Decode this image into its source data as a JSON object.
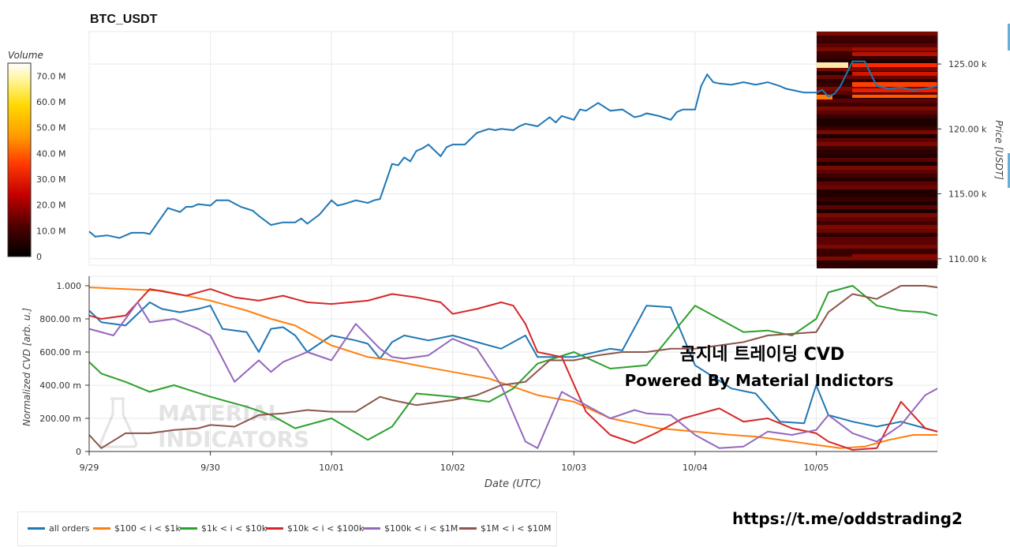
{
  "title": "BTC_USDT",
  "colorbar": {
    "label": "Volume",
    "ticks": [
      "70.0 M",
      "60.0 M",
      "50.0 M",
      "40.0 M",
      "30.0 M",
      "20.0 M",
      "10.0 M",
      "0"
    ],
    "max": 75
  },
  "price_axis": {
    "label": "Price [USDT]",
    "ticks": [
      "125.00 k",
      "120.00 k",
      "115.00 k",
      "110.00 k"
    ]
  },
  "cvd_axis": {
    "label": "Normalized CVD [arb. u.]",
    "ticks": [
      "1.000",
      "800.00 m",
      "600.00 m",
      "400.00 m",
      "200.00 m",
      "0"
    ]
  },
  "x_axis": {
    "label": "Date (UTC)",
    "ticks": [
      "9/29",
      "9/30",
      "10/01",
      "10/02",
      "10/03",
      "10/04",
      "10/05"
    ]
  },
  "watermark": {
    "line1": "MATERIAL",
    "line2": "INDICATORS"
  },
  "overlay": {
    "line1": "곰지네 트레이딩 CVD",
    "line2": "Powered By Material Indictors"
  },
  "link_text": "https://t.me/oddstrading2",
  "colors": {
    "all_orders": "#1f77b4",
    "s100": "#ff7f0e",
    "s1k": "#2ca02c",
    "s10k": "#d62728",
    "s100k": "#9467bd",
    "s1m": "#8c564b"
  },
  "legend": [
    {
      "key": "all_orders",
      "label": "all orders"
    },
    {
      "key": "s100",
      "label": "$100 < i < $1k"
    },
    {
      "key": "s1k",
      "label": "$1k < i < $10k"
    },
    {
      "key": "s10k",
      "label": "$10k < i < $100k"
    },
    {
      "key": "s100k",
      "label": "$100k < i < $1M"
    },
    {
      "key": "s1m",
      "label": "$1M < i < $10M"
    }
  ],
  "chart_data": [
    {
      "type": "line",
      "title": "BTC_USDT",
      "xlabel": "",
      "ylabel": "Price [USDT]",
      "x_unit": "days since 9/29 00:00 UTC",
      "xlim": [
        0,
        7.0
      ],
      "ylim": [
        109.5,
        127.5
      ],
      "y_unit": "k USDT",
      "series": [
        {
          "name": "price",
          "x": [
            0,
            0.05,
            0.15,
            0.25,
            0.35,
            0.45,
            0.5,
            0.65,
            0.75,
            0.8,
            0.85,
            0.9,
            1.0,
            1.05,
            1.15,
            1.25,
            1.35,
            1.4,
            1.5,
            1.6,
            1.7,
            1.75,
            1.8,
            1.9,
            2.0,
            2.05,
            2.1,
            2.2,
            2.3,
            2.35,
            2.4,
            2.5,
            2.55,
            2.6,
            2.65,
            2.7,
            2.75,
            2.8,
            2.9,
            2.95,
            3.0,
            3.1,
            3.2,
            3.3,
            3.35,
            3.4,
            3.5,
            3.55,
            3.6,
            3.7,
            3.8,
            3.85,
            3.9,
            4.0,
            4.05,
            4.1,
            4.2,
            4.3,
            4.4,
            4.5,
            4.55,
            4.6,
            4.7,
            4.8,
            4.85,
            4.9,
            5.0,
            5.05,
            5.1,
            5.15,
            5.2,
            5.3,
            5.4,
            5.5,
            5.6,
            5.7,
            5.75,
            5.8,
            5.9,
            6.0,
            6.05,
            6.1,
            6.15,
            6.2,
            6.3,
            6.4,
            6.5,
            6.6,
            6.7,
            6.8,
            6.9,
            7.0
          ],
          "y": [
            112.1,
            111.7,
            111.8,
            111.6,
            112.0,
            112.0,
            111.9,
            113.9,
            113.6,
            114.0,
            114.0,
            114.2,
            114.1,
            114.5,
            114.5,
            114.0,
            113.7,
            113.3,
            112.6,
            112.8,
            112.8,
            113.1,
            112.7,
            113.4,
            114.5,
            114.1,
            114.2,
            114.5,
            114.3,
            114.5,
            114.6,
            117.3,
            117.2,
            117.8,
            117.5,
            118.3,
            118.5,
            118.8,
            117.9,
            118.6,
            118.8,
            118.8,
            119.7,
            120.0,
            119.9,
            120.0,
            119.9,
            120.2,
            120.4,
            120.2,
            120.9,
            120.5,
            121.0,
            120.7,
            121.5,
            121.4,
            122.0,
            121.4,
            121.5,
            120.9,
            121.0,
            121.2,
            121.0,
            120.7,
            121.3,
            121.5,
            121.5,
            123.3,
            124.2,
            123.6,
            123.5,
            123.4,
            123.6,
            123.4,
            123.6,
            123.3,
            123.1,
            123.0,
            122.8,
            122.8,
            123.0,
            122.5,
            122.7,
            123.3,
            125.2,
            125.2,
            123.3,
            123.1,
            123.2,
            123.0,
            123.1,
            123.3
          ]
        }
      ]
    },
    {
      "type": "line",
      "title": "",
      "xlabel": "Date (UTC)",
      "ylabel": "Normalized CVD [arb. u.]",
      "x_unit": "days since 9/29 00:00 UTC",
      "xlim": [
        0,
        7.0
      ],
      "ylim": [
        0,
        1.0
      ],
      "series": [
        {
          "name": "all orders",
          "key": "all_orders",
          "x": [
            0,
            0.1,
            0.3,
            0.5,
            0.6,
            0.75,
            0.9,
            1.0,
            1.1,
            1.3,
            1.4,
            1.5,
            1.6,
            1.7,
            1.8,
            2.0,
            2.2,
            2.3,
            2.4,
            2.5,
            2.6,
            2.8,
            3.0,
            3.2,
            3.4,
            3.6,
            3.7,
            4.0,
            4.3,
            4.4,
            4.6,
            4.8,
            5.0,
            5.3,
            5.5,
            5.7,
            5.9,
            6.0,
            6.1,
            6.3,
            6.5,
            6.7,
            6.9,
            7.0
          ],
          "y": [
            0.85,
            0.78,
            0.76,
            0.9,
            0.86,
            0.84,
            0.86,
            0.88,
            0.74,
            0.72,
            0.6,
            0.74,
            0.75,
            0.7,
            0.6,
            0.7,
            0.67,
            0.65,
            0.56,
            0.66,
            0.7,
            0.67,
            0.7,
            0.66,
            0.62,
            0.7,
            0.57,
            0.57,
            0.62,
            0.61,
            0.88,
            0.87,
            0.52,
            0.38,
            0.35,
            0.18,
            0.17,
            0.4,
            0.22,
            0.18,
            0.15,
            0.18,
            0.14,
            0.12
          ]
        },
        {
          "name": "$100 < i < $1k",
          "key": "s100",
          "x": [
            0,
            0.3,
            0.6,
            1.0,
            1.3,
            1.5,
            1.7,
            2.0,
            2.3,
            2.5,
            2.7,
            3.0,
            3.3,
            3.5,
            3.7,
            4.0,
            4.3,
            4.5,
            4.7,
            5.0,
            5.3,
            5.5,
            5.7,
            6.0,
            6.2,
            6.4,
            6.6,
            6.8,
            7.0
          ],
          "y": [
            0.99,
            0.98,
            0.97,
            0.91,
            0.85,
            0.8,
            0.76,
            0.64,
            0.57,
            0.55,
            0.52,
            0.48,
            0.44,
            0.39,
            0.34,
            0.3,
            0.2,
            0.17,
            0.14,
            0.12,
            0.1,
            0.09,
            0.07,
            0.04,
            0.02,
            0.03,
            0.07,
            0.1,
            0.1
          ]
        },
        {
          "name": "$1k < i < $10k",
          "key": "s1k",
          "x": [
            0,
            0.1,
            0.3,
            0.5,
            0.7,
            1.0,
            1.3,
            1.5,
            1.7,
            2.0,
            2.3,
            2.5,
            2.7,
            3.0,
            3.3,
            3.5,
            3.7,
            4.0,
            4.3,
            4.6,
            4.8,
            5.0,
            5.2,
            5.4,
            5.6,
            5.8,
            6.0,
            6.1,
            6.3,
            6.5,
            6.7,
            6.9,
            7.0
          ],
          "y": [
            0.54,
            0.47,
            0.42,
            0.36,
            0.4,
            0.33,
            0.27,
            0.22,
            0.14,
            0.2,
            0.07,
            0.15,
            0.35,
            0.33,
            0.3,
            0.38,
            0.53,
            0.6,
            0.5,
            0.52,
            0.7,
            0.88,
            0.8,
            0.72,
            0.73,
            0.7,
            0.8,
            0.96,
            1.0,
            0.88,
            0.85,
            0.84,
            0.82
          ]
        },
        {
          "name": "$10k < i < $100k",
          "key": "s10k",
          "x": [
            0,
            0.1,
            0.3,
            0.5,
            0.8,
            1.0,
            1.2,
            1.4,
            1.6,
            1.8,
            2.0,
            2.3,
            2.5,
            2.7,
            2.9,
            3.0,
            3.2,
            3.4,
            3.5,
            3.6,
            3.7,
            3.9,
            4.1,
            4.3,
            4.5,
            4.7,
            4.9,
            5.0,
            5.2,
            5.4,
            5.6,
            5.8,
            6.0,
            6.1,
            6.3,
            6.5,
            6.7,
            6.9,
            7.0
          ],
          "y": [
            0.82,
            0.8,
            0.82,
            0.98,
            0.94,
            0.98,
            0.93,
            0.91,
            0.94,
            0.9,
            0.89,
            0.91,
            0.95,
            0.93,
            0.9,
            0.83,
            0.86,
            0.9,
            0.88,
            0.77,
            0.6,
            0.57,
            0.24,
            0.1,
            0.05,
            0.12,
            0.2,
            0.22,
            0.26,
            0.18,
            0.2,
            0.14,
            0.11,
            0.06,
            0.01,
            0.02,
            0.3,
            0.14,
            0.12
          ]
        },
        {
          "name": "$100k < i < $1M",
          "key": "s100k",
          "x": [
            0,
            0.2,
            0.4,
            0.5,
            0.7,
            0.9,
            1.0,
            1.2,
            1.4,
            1.5,
            1.6,
            1.8,
            2.0,
            2.2,
            2.4,
            2.5,
            2.6,
            2.8,
            3.0,
            3.2,
            3.4,
            3.6,
            3.7,
            3.9,
            4.1,
            4.3,
            4.5,
            4.6,
            4.8,
            5.0,
            5.2,
            5.4,
            5.6,
            5.8,
            6.0,
            6.1,
            6.3,
            6.5,
            6.7,
            6.9,
            7.0
          ],
          "y": [
            0.74,
            0.7,
            0.9,
            0.78,
            0.8,
            0.74,
            0.7,
            0.42,
            0.55,
            0.48,
            0.54,
            0.6,
            0.55,
            0.77,
            0.62,
            0.57,
            0.56,
            0.58,
            0.68,
            0.62,
            0.4,
            0.06,
            0.02,
            0.36,
            0.28,
            0.2,
            0.25,
            0.23,
            0.22,
            0.1,
            0.02,
            0.03,
            0.12,
            0.1,
            0.13,
            0.22,
            0.11,
            0.06,
            0.16,
            0.34,
            0.38
          ]
        },
        {
          "name": "$1M < i < $10M",
          "key": "s1m",
          "x": [
            0,
            0.1,
            0.3,
            0.5,
            0.7,
            0.9,
            1.0,
            1.2,
            1.4,
            1.6,
            1.8,
            2.0,
            2.2,
            2.4,
            2.5,
            2.7,
            3.0,
            3.2,
            3.4,
            3.6,
            3.8,
            4.0,
            4.2,
            4.4,
            4.6,
            4.8,
            5.0,
            5.2,
            5.4,
            5.6,
            5.8,
            6.0,
            6.1,
            6.3,
            6.5,
            6.7,
            6.9,
            7.0
          ],
          "y": [
            0.1,
            0.02,
            0.11,
            0.11,
            0.13,
            0.14,
            0.16,
            0.15,
            0.22,
            0.23,
            0.25,
            0.24,
            0.24,
            0.33,
            0.31,
            0.28,
            0.31,
            0.34,
            0.4,
            0.42,
            0.55,
            0.55,
            0.58,
            0.6,
            0.6,
            0.62,
            0.62,
            0.64,
            0.66,
            0.7,
            0.71,
            0.72,
            0.84,
            0.95,
            0.92,
            1.0,
            1.0,
            0.99
          ]
        }
      ]
    }
  ]
}
